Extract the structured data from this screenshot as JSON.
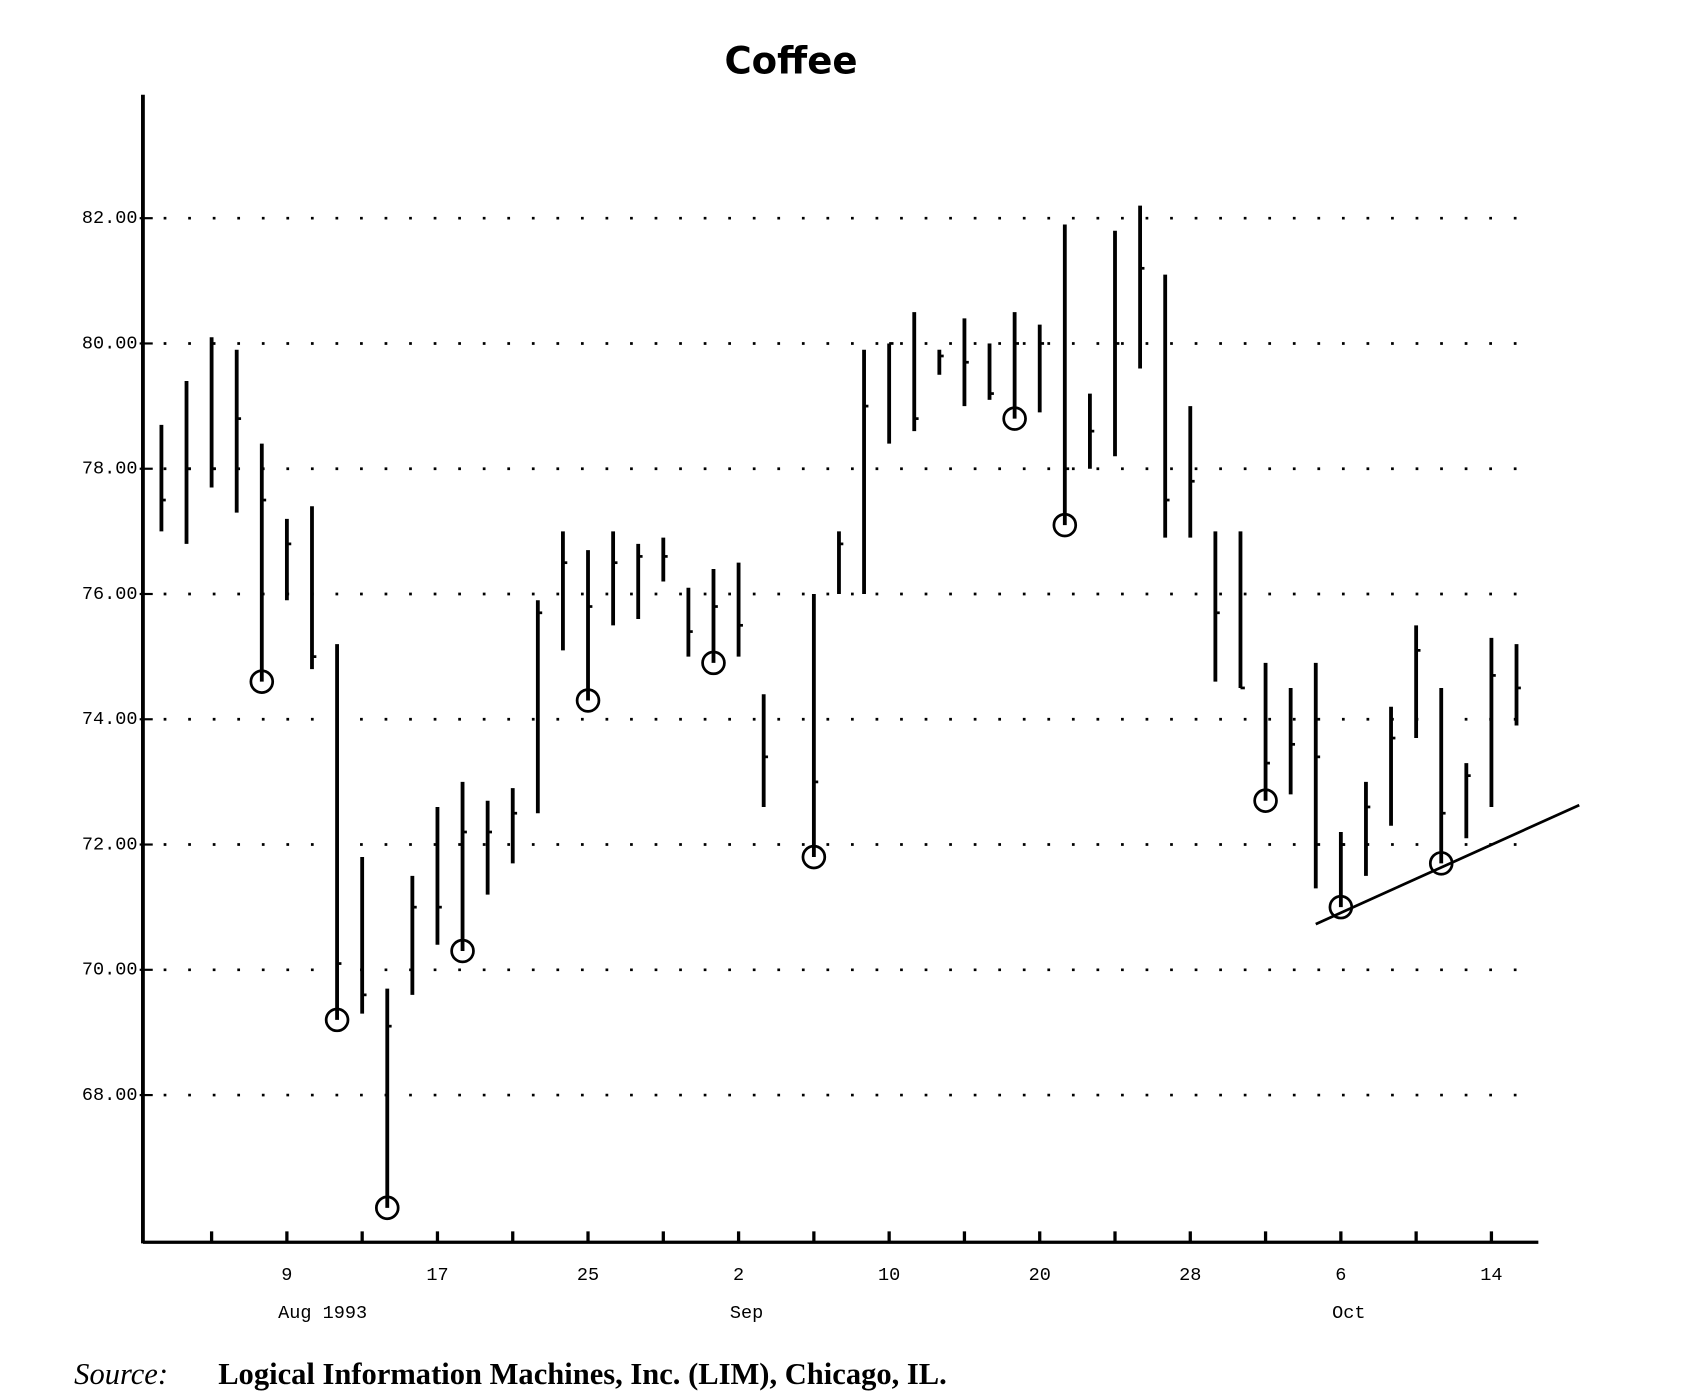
{
  "chart_data": {
    "type": "ohlc",
    "title": "Coffee",
    "x": [
      0,
      1,
      2,
      3,
      4,
      5,
      6,
      7,
      8,
      9,
      10,
      11,
      12,
      13,
      14,
      15,
      16,
      17,
      18,
      19,
      20,
      21,
      22,
      23,
      24,
      26,
      27,
      28,
      29,
      30,
      31,
      32,
      33,
      34,
      35,
      36,
      37,
      38,
      39,
      40,
      41,
      42,
      43,
      44,
      45,
      46,
      47,
      48,
      49,
      50,
      51,
      52,
      53,
      54
    ],
    "high": [
      78.7,
      79.4,
      80.1,
      79.9,
      78.4,
      77.2,
      77.4,
      75.2,
      71.8,
      69.7,
      71.5,
      72.6,
      73,
      72.7,
      72.9,
      75.9,
      77,
      76.7,
      77,
      76.8,
      76.9,
      76.1,
      76.4,
      76.5,
      74.4,
      76,
      77,
      79.9,
      80,
      80.5,
      79.9,
      80.4,
      80,
      80.5,
      80.3,
      81.9,
      79.2,
      81.8,
      82.2,
      81.1,
      79,
      77,
      77,
      74.9,
      74.5,
      74.9,
      72.2,
      73,
      74.2,
      75.5,
      74.5,
      73.3,
      75.3,
      75.2
    ],
    "low": [
      77,
      76.8,
      77.7,
      77.3,
      74.6,
      75.9,
      74.8,
      69.2,
      69.3,
      66.2,
      69.6,
      70.4,
      70.3,
      71.2,
      71.7,
      72.5,
      75.1,
      74.3,
      75.5,
      75.6,
      76.2,
      75,
      74.9,
      75,
      72.6,
      71.8,
      76,
      76,
      78.4,
      78.6,
      79.5,
      79,
      79.1,
      78.8,
      78.9,
      77.1,
      78,
      78.2,
      79.6,
      76.9,
      76.9,
      74.6,
      74.5,
      72.7,
      72.8,
      71.3,
      71,
      71.5,
      72.3,
      73.7,
      71.7,
      72.1,
      72.6,
      73.9
    ],
    "close": [
      77.5,
      78,
      78,
      78.8,
      77.5,
      76.8,
      75,
      70.1,
      69.6,
      69.1,
      71,
      71,
      72.2,
      72.2,
      72.5,
      75.7,
      76.5,
      75.8,
      76.5,
      76.6,
      76.6,
      75.4,
      75.8,
      75.5,
      73.4,
      73,
      76.8,
      79,
      80,
      78.8,
      79.8,
      79.7,
      79.2,
      80,
      80,
      78,
      78.6,
      80,
      81.2,
      77.5,
      77.8,
      75.7,
      74.5,
      73.3,
      73.6,
      73.4,
      72,
      72.6,
      73.7,
      75.1,
      72.5,
      73.1,
      74.7,
      74.5
    ],
    "color": "#000000",
    "circled_x": [
      4,
      7,
      9,
      12,
      17,
      22,
      26,
      34,
      36,
      44,
      47,
      51
    ],
    "trendline": {
      "x": [
        46,
        56.5
      ],
      "y": [
        70.73,
        72.63
      ]
    },
    "xlim": [
      -0.65,
      54.87
    ],
    "xticks": [
      {
        "value": 5,
        "label": "9"
      },
      {
        "value": 11,
        "label": "17"
      },
      {
        "value": 17,
        "label": "25"
      },
      {
        "value": 23,
        "label": "2"
      },
      {
        "value": 29,
        "label": "10"
      },
      {
        "value": 35,
        "label": "20"
      },
      {
        "value": 41,
        "label": "28"
      },
      {
        "value": 47,
        "label": "6"
      },
      {
        "value": 53,
        "label": "14"
      }
    ],
    "xminorticks": [
      2,
      8,
      14,
      20,
      26,
      32,
      38,
      44,
      50
    ],
    "xgroups": [
      {
        "value": 5,
        "label": "Aug 1993"
      },
      {
        "value": 23,
        "label": "Sep"
      },
      {
        "value": 47,
        "label": "Oct"
      }
    ],
    "ylim": [
      65.65,
      83.97
    ],
    "yticks": [
      {
        "value": 68,
        "label": "68.00"
      },
      {
        "value": 70,
        "label": "70.00"
      },
      {
        "value": 72,
        "label": "72.00"
      },
      {
        "value": 74,
        "label": "74.00"
      },
      {
        "value": 76,
        "label": "76.00"
      },
      {
        "value": 78,
        "label": "78.00"
      },
      {
        "value": 80,
        "label": "80.00"
      },
      {
        "value": 82,
        "label": "82.00"
      }
    ],
    "grid": true,
    "source": {
      "label": "Source:",
      "text": "Logical Information Machines, Inc. (LIM), Chicago, IL."
    }
  }
}
